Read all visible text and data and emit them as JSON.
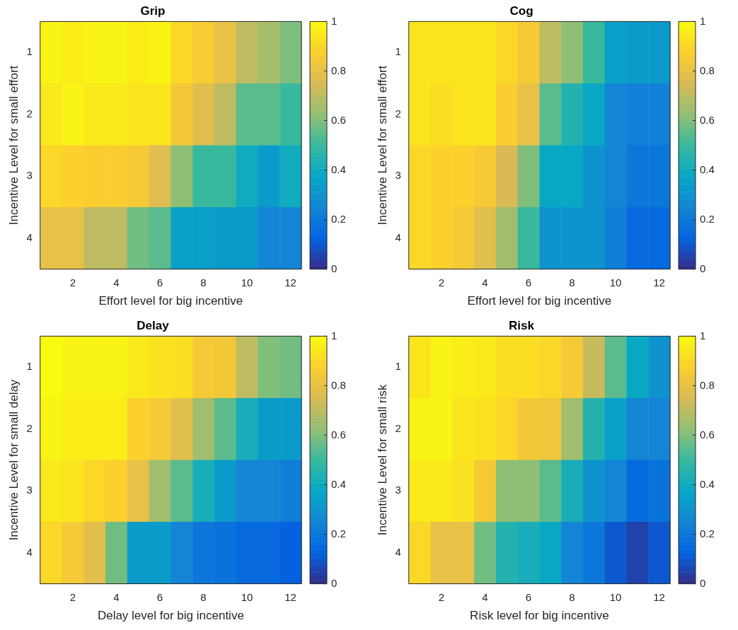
{
  "chart_data": [
    {
      "type": "heatmap",
      "title": "Grip",
      "xlabel": "Effort level for big incentive",
      "ylabel": "Incentive Level for small effort",
      "categories": [
        null,
        "2",
        null,
        "4",
        null,
        "6",
        null,
        "8",
        null,
        "10",
        null,
        "12"
      ],
      "y_categories": [
        "1",
        "2",
        "3",
        "4"
      ],
      "clim": [
        0,
        1
      ],
      "cticks": [
        0,
        0.2,
        0.4,
        0.6,
        0.8,
        1
      ],
      "cells": [
        [
          0.98,
          0.96,
          0.98,
          0.98,
          0.96,
          0.98,
          0.9,
          0.86,
          0.8,
          0.7,
          0.66,
          0.6
        ],
        [
          0.95,
          0.98,
          0.95,
          0.95,
          0.94,
          0.94,
          0.84,
          0.78,
          0.7,
          0.55,
          0.55,
          0.5
        ],
        [
          0.9,
          0.88,
          0.87,
          0.87,
          0.85,
          0.77,
          0.62,
          0.5,
          0.5,
          0.4,
          0.33,
          0.4
        ],
        [
          0.8,
          0.8,
          0.7,
          0.7,
          0.58,
          0.55,
          0.35,
          0.35,
          0.33,
          0.33,
          0.25,
          0.25
        ]
      ]
    },
    {
      "type": "heatmap",
      "title": "Cog",
      "xlabel": "Effort level for big incentive",
      "ylabel": "Incentive Level for small effort",
      "categories": [
        null,
        "2",
        null,
        "4",
        null,
        "6",
        null,
        "8",
        null,
        "10",
        null,
        "12"
      ],
      "y_categories": [
        "1",
        "2",
        "3",
        "4"
      ],
      "clim": [
        0,
        1
      ],
      "cticks": [
        0,
        0.2,
        0.4,
        0.6,
        0.8,
        1
      ],
      "cells": [
        [
          0.94,
          0.94,
          0.94,
          0.94,
          0.9,
          0.85,
          0.7,
          0.62,
          0.5,
          0.35,
          0.33,
          0.33
        ],
        [
          0.94,
          0.92,
          0.94,
          0.94,
          0.87,
          0.8,
          0.55,
          0.45,
          0.38,
          0.25,
          0.23,
          0.23
        ],
        [
          0.9,
          0.88,
          0.88,
          0.85,
          0.75,
          0.6,
          0.38,
          0.38,
          0.3,
          0.25,
          0.2,
          0.2
        ],
        [
          0.9,
          0.88,
          0.85,
          0.78,
          0.65,
          0.5,
          0.3,
          0.3,
          0.3,
          0.22,
          0.15,
          0.15
        ]
      ]
    },
    {
      "type": "heatmap",
      "title": "Delay",
      "xlabel": "Delay level for big incentive",
      "ylabel": "Incentive Level for small delay",
      "categories": [
        null,
        "2",
        null,
        "4",
        null,
        "6",
        null,
        "8",
        null,
        "10",
        null,
        "12"
      ],
      "y_categories": [
        "1",
        "2",
        "3",
        "4"
      ],
      "clim": [
        0,
        1
      ],
      "cticks": [
        0,
        0.2,
        0.4,
        0.6,
        0.8,
        1
      ],
      "cells": [
        [
          1,
          0.98,
          0.98,
          0.98,
          0.95,
          0.93,
          0.92,
          0.85,
          0.84,
          0.7,
          0.6,
          0.58
        ],
        [
          0.98,
          0.96,
          0.96,
          0.96,
          0.88,
          0.85,
          0.78,
          0.65,
          0.55,
          0.42,
          0.33,
          0.33
        ],
        [
          0.95,
          0.94,
          0.9,
          0.88,
          0.8,
          0.65,
          0.55,
          0.42,
          0.33,
          0.25,
          0.25,
          0.22
        ],
        [
          0.9,
          0.85,
          0.78,
          0.58,
          0.33,
          0.33,
          0.25,
          0.2,
          0.18,
          0.15,
          0.15,
          0.12
        ]
      ]
    },
    {
      "type": "heatmap",
      "title": "Risk",
      "xlabel": "Risk level for big incentive",
      "ylabel": "Incentive Level for small risk",
      "categories": [
        null,
        "2",
        null,
        "4",
        null,
        "6",
        null,
        "8",
        null,
        "10",
        null,
        "12"
      ],
      "y_categories": [
        "1",
        "2",
        "3",
        "4"
      ],
      "clim": [
        0,
        1
      ],
      "cticks": [
        0,
        0.2,
        0.4,
        0.6,
        0.8,
        1
      ],
      "cells": [
        [
          0.94,
          0.98,
          0.96,
          0.95,
          0.92,
          0.92,
          0.9,
          0.85,
          0.72,
          0.55,
          0.38,
          0.3
        ],
        [
          0.98,
          0.98,
          0.94,
          0.93,
          0.9,
          0.84,
          0.83,
          0.65,
          0.45,
          0.35,
          0.25,
          0.25
        ],
        [
          0.95,
          0.95,
          0.93,
          0.85,
          0.62,
          0.62,
          0.55,
          0.42,
          0.3,
          0.25,
          0.15,
          0.18
        ],
        [
          0.9,
          0.8,
          0.8,
          0.58,
          0.45,
          0.42,
          0.38,
          0.25,
          0.2,
          0.1,
          0.05,
          0.1
        ]
      ]
    }
  ]
}
